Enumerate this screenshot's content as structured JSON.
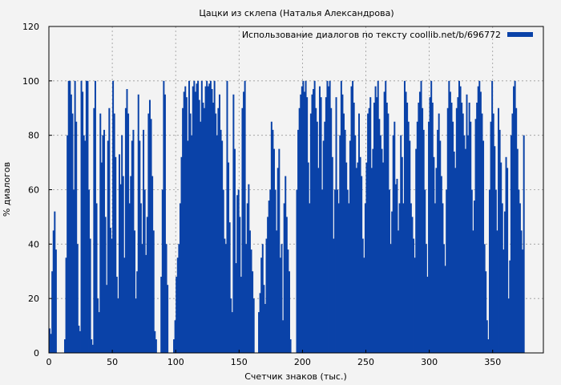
{
  "chart_data": {
    "type": "bar",
    "title": "Цацки из склепа (Наталья Александрова)",
    "xlabel": "Счетчик знаков (тыс.)",
    "ylabel": "% диалогов",
    "xlim": [
      0,
      390
    ],
    "ylim": [
      0,
      120
    ],
    "xticks": [
      0,
      50,
      100,
      150,
      200,
      250,
      300,
      350
    ],
    "yticks": [
      0,
      20,
      40,
      60,
      80,
      100,
      120
    ],
    "grid": true,
    "legend_position": "top-right",
    "series": [
      {
        "name": "Использование диалогов по тексту coollib.net/b/696772",
        "color": "#0a42a8",
        "x_step": 1,
        "values": [
          9,
          7,
          30,
          45,
          52,
          38,
          0,
          0,
          0,
          0,
          0,
          0,
          5,
          35,
          80,
          100,
          100,
          95,
          88,
          60,
          100,
          85,
          40,
          10,
          8,
          100,
          96,
          80,
          78,
          100,
          100,
          60,
          42,
          5,
          3,
          90,
          100,
          55,
          20,
          15,
          88,
          70,
          80,
          82,
          50,
          25,
          78,
          90,
          46,
          42,
          100,
          88,
          72,
          28,
          20,
          73,
          62,
          80,
          65,
          35,
          90,
          97,
          88,
          55,
          65,
          78,
          82,
          45,
          20,
          30,
          95,
          78,
          55,
          40,
          82,
          60,
          36,
          50,
          88,
          93,
          86,
          65,
          45,
          8,
          5,
          0,
          0,
          0,
          28,
          60,
          100,
          95,
          40,
          25,
          0,
          0,
          0,
          0,
          5,
          12,
          28,
          35,
          40,
          55,
          72,
          90,
          96,
          98,
          94,
          78,
          100,
          88,
          80,
          98,
          100,
          96,
          99,
          100,
          93,
          85,
          100,
          92,
          90,
          98,
          100,
          98,
          99,
          100,
          97,
          92,
          100,
          88,
          80,
          90,
          95,
          82,
          78,
          60,
          42,
          40,
          100,
          70,
          48,
          20,
          15,
          95,
          75,
          33,
          58,
          60,
          50,
          28,
          90,
          96,
          100,
          40,
          55,
          62,
          45,
          38,
          30,
          20,
          0,
          0,
          0,
          15,
          22,
          35,
          40,
          25,
          18,
          42,
          50,
          56,
          60,
          85,
          82,
          75,
          60,
          45,
          68,
          75,
          35,
          40,
          12,
          55,
          65,
          50,
          38,
          30,
          5,
          0,
          0,
          0,
          0,
          60,
          82,
          90,
          95,
          98,
          100,
          96,
          100,
          94,
          70,
          55,
          88,
          95,
          97,
          100,
          90,
          85,
          68,
          98,
          94,
          60,
          78,
          85,
          94,
          100,
          98,
          100,
          90,
          72,
          42,
          60,
          94,
          60,
          55,
          80,
          100,
          95,
          88,
          82,
          70,
          60,
          55,
          78,
          98,
          100,
          92,
          80,
          68,
          70,
          88,
          72,
          65,
          42,
          35,
          55,
          70,
          88,
          90,
          94,
          68,
          75,
          92,
          98,
          94,
          100,
          86,
          80,
          75,
          70,
          96,
          100,
          92,
          88,
          60,
          40,
          52,
          80,
          85,
          62,
          64,
          45,
          55,
          80,
          72,
          55,
          100,
          96,
          92,
          85,
          78,
          55,
          50,
          42,
          35,
          75,
          85,
          92,
          96,
          100,
          90,
          82,
          60,
          40,
          28,
          85,
          94,
          100,
          92,
          72,
          55,
          68,
          82,
          88,
          78,
          65,
          55,
          40,
          32,
          60,
          90,
          100,
          96,
          92,
          85,
          74,
          68,
          90,
          94,
          100,
          98,
          92,
          88,
          80,
          75,
          95,
          80,
          92,
          85,
          60,
          45,
          56,
          86,
          92,
          98,
          100,
          96,
          88,
          78,
          40,
          30,
          12,
          5,
          60,
          85,
          100,
          88,
          76,
          60,
          45,
          90,
          82,
          70,
          55,
          38,
          52,
          72,
          68,
          20,
          34,
          80,
          88,
          98,
          100,
          90,
          75,
          60,
          55,
          45,
          38,
          80
        ]
      }
    ]
  }
}
